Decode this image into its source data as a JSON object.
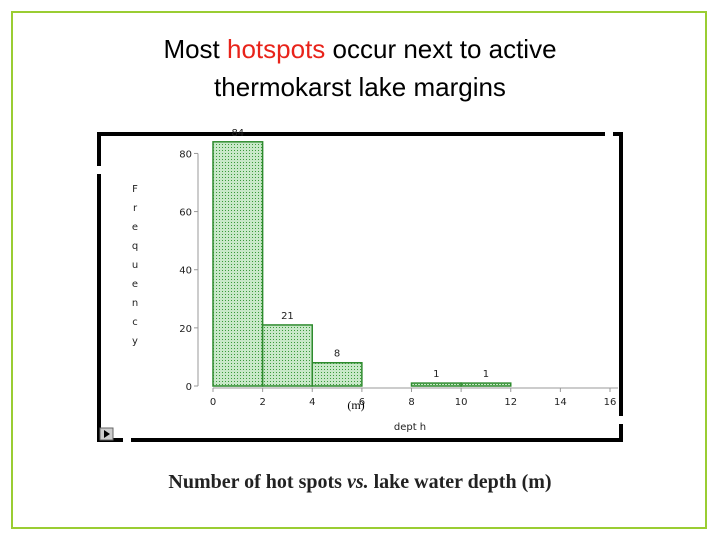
{
  "chart_data": {
    "type": "histogram",
    "title_lead": "Most",
    "title_highlight": "hotspots",
    "title_rest": "occur next to active",
    "title_line2": "thermokarst lake margins",
    "bins": [
      0,
      2,
      4,
      6,
      8,
      10,
      12
    ],
    "counts": [
      84,
      21,
      8,
      0,
      1,
      1
    ],
    "color": "#9fd49f",
    "edge_color": "#2e8b2e",
    "xlim": [
      0,
      16
    ],
    "xticks": [
      0,
      2,
      4,
      6,
      8,
      10,
      12,
      14,
      16
    ],
    "ylim": [
      0,
      86
    ],
    "yticks": [
      0,
      20,
      40,
      60,
      80
    ],
    "xlabel": "dept h",
    "ylabel": "Frequency",
    "annotation": "(m)",
    "caption_lead": "Number of hot spots",
    "caption_italic": "vs.",
    "caption_rest": "lake water depth (m)"
  }
}
